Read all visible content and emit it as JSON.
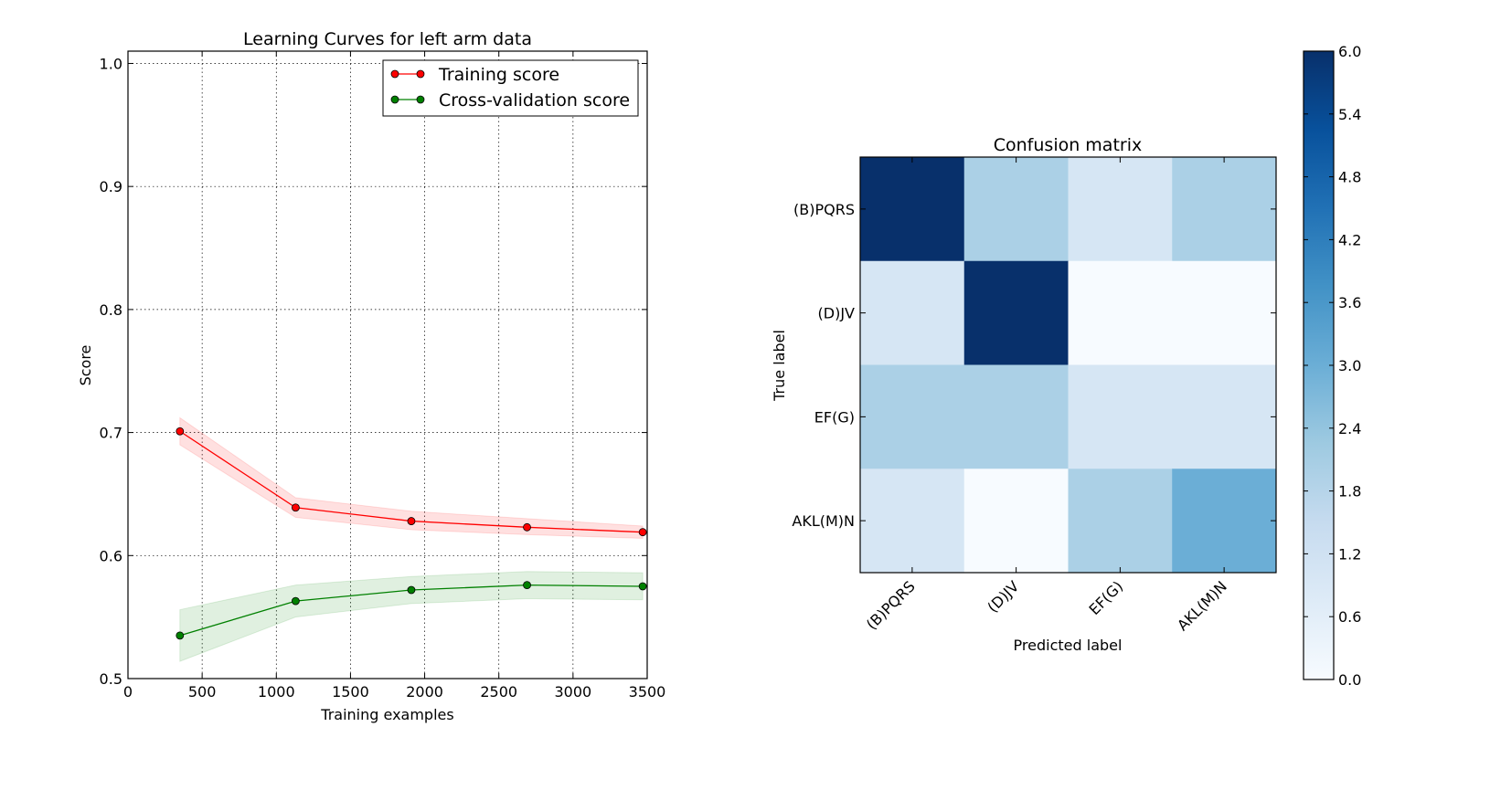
{
  "chart_data": [
    {
      "type": "line",
      "title": "Learning Curves for left arm data",
      "xlabel": "Training examples",
      "ylabel": "Score",
      "xlim": [
        0,
        3500
      ],
      "ylim": [
        0.5,
        1.01
      ],
      "xticks": [
        0,
        500,
        1000,
        1500,
        2000,
        2500,
        3000,
        3500
      ],
      "yticks": [
        0.5,
        0.6,
        0.7,
        0.8,
        0.9,
        1.0
      ],
      "xtick_labels": [
        "0",
        "500",
        "1000",
        "1500",
        "2000",
        "2500",
        "3000",
        "3500"
      ],
      "ytick_labels": [
        "0.5",
        "0.6",
        "0.7",
        "0.8",
        "0.9",
        "1.0"
      ],
      "grid": true,
      "legend_position": "top-right",
      "x": [
        350,
        1130,
        1910,
        2690,
        3470
      ],
      "series": [
        {
          "name": "Training score",
          "color": "#ff0000",
          "values": [
            0.701,
            0.639,
            0.628,
            0.623,
            0.619
          ],
          "band_low": [
            0.69,
            0.631,
            0.621,
            0.617,
            0.614
          ],
          "band_high": [
            0.712,
            0.647,
            0.636,
            0.63,
            0.624
          ]
        },
        {
          "name": "Cross-validation score",
          "color": "#008000",
          "values": [
            0.535,
            0.563,
            0.572,
            0.576,
            0.575
          ],
          "band_low": [
            0.514,
            0.55,
            0.561,
            0.565,
            0.564
          ],
          "band_high": [
            0.556,
            0.576,
            0.583,
            0.587,
            0.586
          ]
        }
      ]
    },
    {
      "type": "heatmap",
      "title": "Confusion matrix",
      "xlabel": "Predicted label",
      "ylabel": "True label",
      "categories": [
        "(B)PQRS",
        "(D)JV",
        "EF(G)",
        "AKL(M)N"
      ],
      "matrix": [
        [
          6,
          2,
          1,
          2
        ],
        [
          1,
          6,
          0,
          0
        ],
        [
          2,
          2,
          1,
          1
        ],
        [
          1,
          0,
          2,
          3
        ]
      ],
      "colormap": "Blues",
      "vmin": 0,
      "vmax": 6,
      "colorbar_ticks": [
        "0.0",
        "0.6",
        "1.2",
        "1.8",
        "2.4",
        "3.0",
        "3.6",
        "4.2",
        "4.8",
        "5.4",
        "6.0"
      ]
    }
  ]
}
